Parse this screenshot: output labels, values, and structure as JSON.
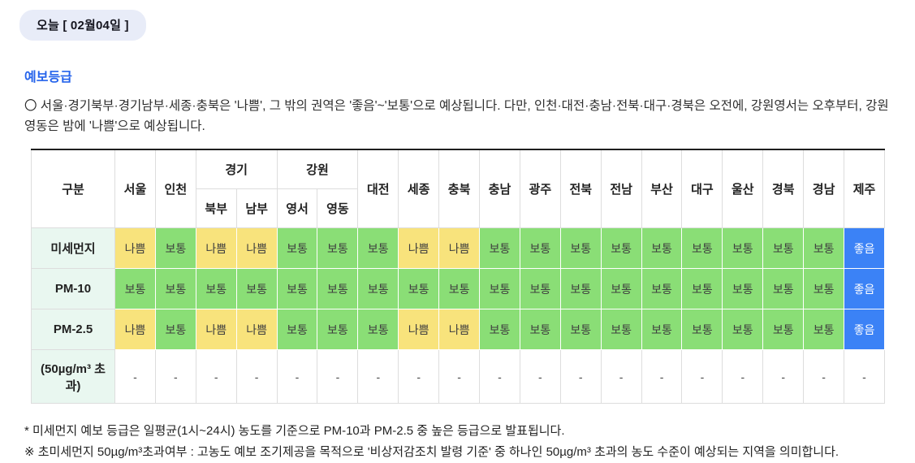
{
  "date_tab": {
    "label": "오늘 [ 02월04일 ]"
  },
  "section_title": "예보등급",
  "summary": "〇 서울·경기북부·경기남부·세종·충북은 '나쁨', 그 밖의 권역은 '좋음'~'보통'으로 예상됩니다. 다만, 인천·대전·충남·전북·대구·경북은 오전에, 강원영서는 오후부터, 강원영동은 밤에 '나쁨'으로 예상됩니다.",
  "table": {
    "header_row1": [
      {
        "label": "구분",
        "rowspan": 2
      },
      {
        "label": "서울",
        "rowspan": 2
      },
      {
        "label": "인천",
        "rowspan": 2
      },
      {
        "label": "경기",
        "colspan": 2
      },
      {
        "label": "강원",
        "colspan": 2
      },
      {
        "label": "대전",
        "rowspan": 2
      },
      {
        "label": "세종",
        "rowspan": 2
      },
      {
        "label": "충북",
        "rowspan": 2
      },
      {
        "label": "충남",
        "rowspan": 2
      },
      {
        "label": "광주",
        "rowspan": 2
      },
      {
        "label": "전북",
        "rowspan": 2
      },
      {
        "label": "전남",
        "rowspan": 2
      },
      {
        "label": "부산",
        "rowspan": 2
      },
      {
        "label": "대구",
        "rowspan": 2
      },
      {
        "label": "울산",
        "rowspan": 2
      },
      {
        "label": "경북",
        "rowspan": 2
      },
      {
        "label": "경남",
        "rowspan": 2
      },
      {
        "label": "제주",
        "rowspan": 2
      }
    ],
    "header_row2": [
      "북부",
      "남부",
      "영서",
      "영동"
    ],
    "rows": [
      {
        "header": "미세먼지",
        "values": [
          "나쁨",
          "보통",
          "나쁨",
          "나쁨",
          "보통",
          "보통",
          "보통",
          "나쁨",
          "나쁨",
          "보통",
          "보통",
          "보통",
          "보통",
          "보통",
          "보통",
          "보통",
          "보통",
          "보통",
          "좋음"
        ]
      },
      {
        "header": "PM-10",
        "values": [
          "보통",
          "보통",
          "보통",
          "보통",
          "보통",
          "보통",
          "보통",
          "보통",
          "보통",
          "보통",
          "보통",
          "보통",
          "보통",
          "보통",
          "보통",
          "보통",
          "보통",
          "보통",
          "좋음"
        ]
      },
      {
        "header": "PM-2.5",
        "values": [
          "나쁨",
          "보통",
          "나쁨",
          "나쁨",
          "보통",
          "보통",
          "보통",
          "나쁨",
          "나쁨",
          "보통",
          "보통",
          "보통",
          "보통",
          "보통",
          "보통",
          "보통",
          "보통",
          "보통",
          "좋음"
        ]
      },
      {
        "header": "(50µg/m³ 초과)",
        "values": [
          "-",
          "-",
          "-",
          "-",
          "-",
          "-",
          "-",
          "-",
          "-",
          "-",
          "-",
          "-",
          "-",
          "-",
          "-",
          "-",
          "-",
          "-",
          "-"
        ]
      }
    ],
    "grade_styles": {
      "나쁨": {
        "bg": "#F8E37C",
        "fg": "#3F3F3F"
      },
      "보통": {
        "bg": "#8ADE76",
        "fg": "#3F3F3F"
      },
      "좋음": {
        "bg": "#3B82F6",
        "fg": "#FFFFFF"
      },
      "-": {
        "bg": "#FFFFFF",
        "fg": "#444444"
      }
    }
  },
  "notes": [
    "* 미세먼지 예보 등급은 일평균(1시~24시) 농도를 기준으로 PM-10과 PM-2.5 중 높은 등급으로 발표됩니다.",
    "※ 초미세먼지 50µg/m³초과여부 : 고농도 예보 조기제공을 목적으로 '비상저감조치 발령 기준' 중 하나인 50µg/m³ 초과의 농도 수준이 예상되는 지역을 의미합니다."
  ],
  "colors": {
    "accent_blue": "#2563EB",
    "tab_bg": "#E8ECF8",
    "row_header_bg": "#E9F7F0",
    "grade_bad": "#F8E37C",
    "grade_normal": "#8ADE76",
    "grade_good": "#3B82F6"
  }
}
